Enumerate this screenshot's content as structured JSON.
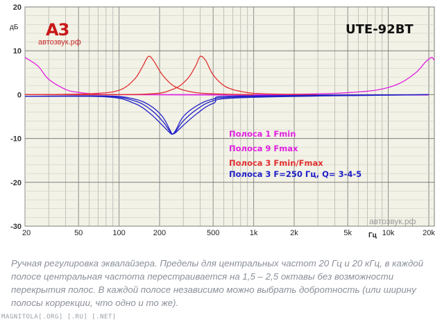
{
  "chart_data": {
    "type": "line",
    "xlabel": "Гц",
    "ylabel": "дБ",
    "x_scale": "log",
    "xlim": [
      20,
      22000
    ],
    "ylim": [
      -30,
      20
    ],
    "grid": true,
    "x_tick_labels": [
      {
        "value": 20,
        "label": "20"
      },
      {
        "value": 50,
        "label": "50"
      },
      {
        "value": 100,
        "label": "100"
      },
      {
        "value": 200,
        "label": "200"
      },
      {
        "value": 500,
        "label": "500"
      },
      {
        "value": 1000,
        "label": "1k"
      },
      {
        "value": 2000,
        "label": "2k"
      },
      {
        "value": 5000,
        "label": "5k"
      },
      {
        "value": 10000,
        "label": "10k"
      },
      {
        "value": 20000,
        "label": "20k"
      }
    ],
    "y_ticks": [
      20,
      10,
      0,
      -10,
      -20,
      -30
    ],
    "legend_placement": "center-right",
    "series": [
      {
        "name": "Полоса 1 Fmin",
        "color": "#e020e0",
        "points": [
          [
            20,
            8.5
          ],
          [
            25,
            6.5
          ],
          [
            30,
            3.5
          ],
          [
            40,
            1.2
          ],
          [
            50,
            0.5
          ],
          [
            70,
            0.1
          ],
          [
            100,
            0.0
          ],
          [
            1000,
            -0.1
          ],
          [
            20000,
            -0.1
          ]
        ]
      },
      {
        "name": "Полоса 9 Fmax",
        "color": "#e020e0",
        "points": [
          [
            20,
            0
          ],
          [
            1000,
            0
          ],
          [
            2000,
            0.1
          ],
          [
            4000,
            0.3
          ],
          [
            8000,
            1.0
          ],
          [
            12000,
            2.5
          ],
          [
            16000,
            5.0
          ],
          [
            19000,
            7.5
          ],
          [
            21000,
            8.5
          ],
          [
            22000,
            7.8
          ]
        ]
      },
      {
        "name": "Полоса 3 Fmin/Fmax",
        "color": "#e03030",
        "points": [
          [
            20,
            0
          ],
          [
            60,
            0.2
          ],
          [
            100,
            1
          ],
          [
            130,
            3.5
          ],
          [
            150,
            6.5
          ],
          [
            165,
            8.7
          ],
          [
            180,
            7.8
          ],
          [
            210,
            4.5
          ],
          [
            260,
            1.8
          ],
          [
            350,
            0.6
          ],
          [
            500,
            0.2
          ],
          [
            1000,
            0
          ]
        ]
      },
      {
        "name": "Полоса 3 Fmin/Fmax",
        "color": "#e03030",
        "points": [
          [
            20,
            0
          ],
          [
            150,
            0.1
          ],
          [
            250,
            1.2
          ],
          [
            320,
            3.5
          ],
          [
            370,
            6.5
          ],
          [
            400,
            8.7
          ],
          [
            440,
            7.8
          ],
          [
            500,
            4.5
          ],
          [
            620,
            1.8
          ],
          [
            850,
            0.6
          ],
          [
            1200,
            0.2
          ],
          [
            3000,
            0
          ]
        ]
      },
      {
        "name": "Полоса 3 F=250 Гц, Q= 3-4-5",
        "color": "#2020c8",
        "points": [
          [
            20,
            -0.4
          ],
          [
            80,
            -0.3
          ],
          [
            130,
            -1
          ],
          [
            170,
            -2.5
          ],
          [
            210,
            -5
          ],
          [
            240,
            -8.2
          ],
          [
            250,
            -9
          ],
          [
            265,
            -8
          ],
          [
            300,
            -5
          ],
          [
            380,
            -2.5
          ],
          [
            500,
            -1
          ],
          [
            800,
            -0.3
          ],
          [
            20000,
            0
          ]
        ]
      },
      {
        "name": "Полоса 3 F=250 Гц, Q= 3-4-5",
        "color": "#2020c8",
        "points": [
          [
            20,
            -0.4
          ],
          [
            80,
            -0.4
          ],
          [
            130,
            -1.4
          ],
          [
            170,
            -3.3
          ],
          [
            210,
            -6
          ],
          [
            240,
            -8.5
          ],
          [
            250,
            -9
          ],
          [
            265,
            -8.3
          ],
          [
            300,
            -6
          ],
          [
            380,
            -3.3
          ],
          [
            500,
            -1.4
          ],
          [
            800,
            -0.5
          ],
          [
            20000,
            0
          ]
        ]
      },
      {
        "name": "Полоса 3 F=250 Гц, Q= 3-4-5",
        "color": "#2020c8",
        "points": [
          [
            20,
            -0.4
          ],
          [
            80,
            -0.5
          ],
          [
            130,
            -2
          ],
          [
            170,
            -4.3
          ],
          [
            210,
            -7
          ],
          [
            240,
            -8.8
          ],
          [
            250,
            -9
          ],
          [
            265,
            -8.6
          ],
          [
            300,
            -7
          ],
          [
            380,
            -4.3
          ],
          [
            500,
            -2
          ],
          [
            800,
            -0.7
          ],
          [
            20000,
            0
          ]
        ]
      }
    ],
    "legend": [
      {
        "label": "Полоса 1 Fmin",
        "color": "#e020e0"
      },
      {
        "label": "Полоса 9 Fmax",
        "color": "#e020e0"
      },
      {
        "label": "Полоса 3 Fmin/Fmax",
        "color": "#e03030"
      },
      {
        "label": "Полоса 3 F=250 Гц, Q= 3-4-5",
        "color": "#2020c8"
      }
    ]
  },
  "branding": {
    "logo_text": "A3",
    "logo_subtext": "автозвук.рф",
    "model": "UTE-92BT",
    "watermark": "автозвук.рф"
  },
  "caption": "Ручная регулировка эквалайзера. Пределы для центральных частот 20 Гц и 20 кГц, в каждой полосе центральная частота перестраивается на 1,5 – 2,5 октавы без возможности перекрытия полос. В каждой полосе независимо можно выбрать добротность (или ширину полосы коррекции, что одно и то же).",
  "footer": "MAGNITOLA[.ORG] [.RU] [.NET]"
}
